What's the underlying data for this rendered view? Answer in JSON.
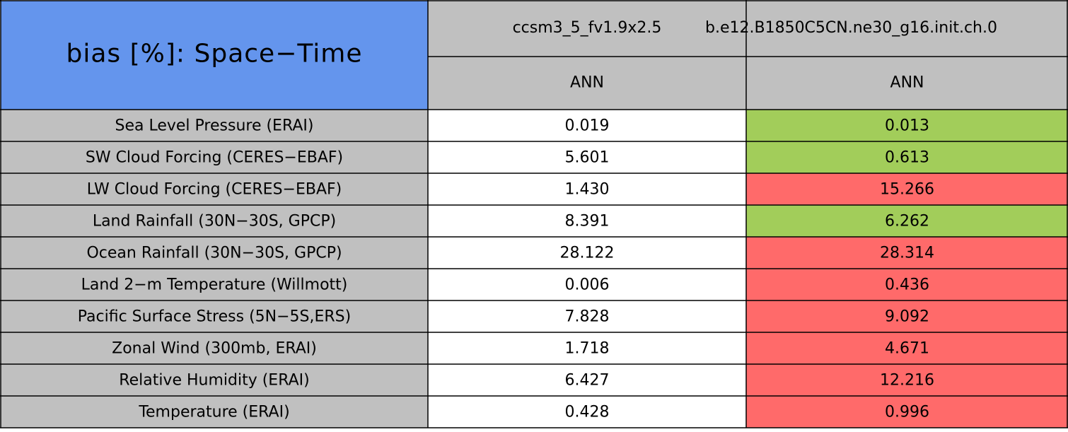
{
  "table": {
    "title": "bias [%]: Space−Time",
    "columns": [
      {
        "name": "ccsm3_5_fv1.9x2.5",
        "period": "ANN"
      },
      {
        "name": "b.e12.B1850C5CN.ne30_g16.init.ch.0",
        "period": "ANN"
      }
    ],
    "colors": {
      "title": "#6495ed",
      "header": "#c0c0c0",
      "label": "#c0c0c0",
      "base": "#ffffff",
      "better": "#a2cd5a",
      "worse": "#ff6a6a"
    },
    "rows": [
      {
        "label": "Sea Level Pressure (ERAI)",
        "values": [
          "0.019",
          "0.013"
        ],
        "status": [
          "base",
          "better"
        ]
      },
      {
        "label": "SW Cloud Forcing (CERES−EBAF)",
        "values": [
          "5.601",
          "0.613"
        ],
        "status": [
          "base",
          "better"
        ]
      },
      {
        "label": "LW Cloud Forcing (CERES−EBAF)",
        "values": [
          "1.430",
          "15.266"
        ],
        "status": [
          "base",
          "worse"
        ]
      },
      {
        "label": "Land Rainfall (30N−30S, GPCP)",
        "values": [
          "8.391",
          "6.262"
        ],
        "status": [
          "base",
          "better"
        ]
      },
      {
        "label": "Ocean Rainfall (30N−30S, GPCP)",
        "values": [
          "28.122",
          "28.314"
        ],
        "status": [
          "base",
          "worse"
        ]
      },
      {
        "label": "Land 2−m Temperature (Willmott)",
        "values": [
          "0.006",
          "0.436"
        ],
        "status": [
          "base",
          "worse"
        ]
      },
      {
        "label": "Pacific Surface Stress (5N−5S,ERS)",
        "values": [
          "7.828",
          "9.092"
        ],
        "status": [
          "base",
          "worse"
        ]
      },
      {
        "label": "Zonal Wind (300mb, ERAI)",
        "values": [
          "1.718",
          "4.671"
        ],
        "status": [
          "base",
          "worse"
        ]
      },
      {
        "label": "Relative Humidity (ERAI)",
        "values": [
          "6.427",
          "12.216"
        ],
        "status": [
          "base",
          "worse"
        ]
      },
      {
        "label": "Temperature (ERAI)",
        "values": [
          "0.428",
          "0.996"
        ],
        "status": [
          "base",
          "worse"
        ]
      }
    ]
  }
}
